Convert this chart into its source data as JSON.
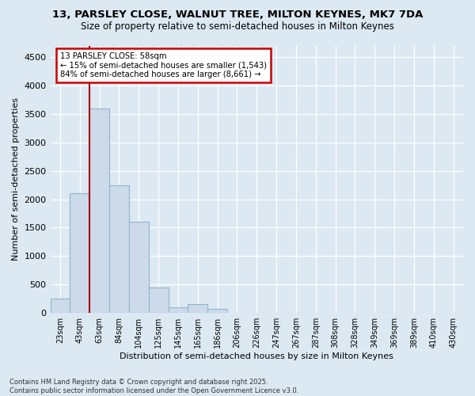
{
  "title_line1": "13, PARSLEY CLOSE, WALNUT TREE, MILTON KEYNES, MK7 7DA",
  "title_line2": "Size of property relative to semi-detached houses in Milton Keynes",
  "xlabel": "Distribution of semi-detached houses by size in Milton Keynes",
  "ylabel": "Number of semi-detached properties",
  "footnote": "Contains HM Land Registry data © Crown copyright and database right 2025.\nContains public sector information licensed under the Open Government Licence v3.0.",
  "categories": [
    "23sqm",
    "43sqm",
    "63sqm",
    "84sqm",
    "104sqm",
    "125sqm",
    "145sqm",
    "165sqm",
    "186sqm",
    "206sqm",
    "226sqm",
    "247sqm",
    "267sqm",
    "287sqm",
    "308sqm",
    "328sqm",
    "349sqm",
    "369sqm",
    "389sqm",
    "410sqm",
    "430sqm"
  ],
  "bar_values": [
    250,
    2100,
    3600,
    2250,
    1600,
    450,
    100,
    150,
    75,
    0,
    0,
    0,
    0,
    0,
    0,
    0,
    0,
    0,
    0,
    0,
    0
  ],
  "bar_color": "#ccdaea",
  "bar_edge_color": "#92b4cc",
  "ylim": [
    0,
    4700
  ],
  "yticks": [
    0,
    500,
    1000,
    1500,
    2000,
    2500,
    3000,
    3500,
    4000,
    4500
  ],
  "vline_x_index": 1.5,
  "annotation_title": "13 PARSLEY CLOSE: 58sqm",
  "annotation_line1": "← 15% of semi-detached houses are smaller (1,543)",
  "annotation_line2": "84% of semi-detached houses are larger (8,661) →",
  "vline_color": "#aa0000",
  "annotation_box_edge_color": "#cc0000",
  "background_color": "#dce9f2",
  "plot_bg_color": "#dce9f2",
  "grid_color": "#ffffff"
}
